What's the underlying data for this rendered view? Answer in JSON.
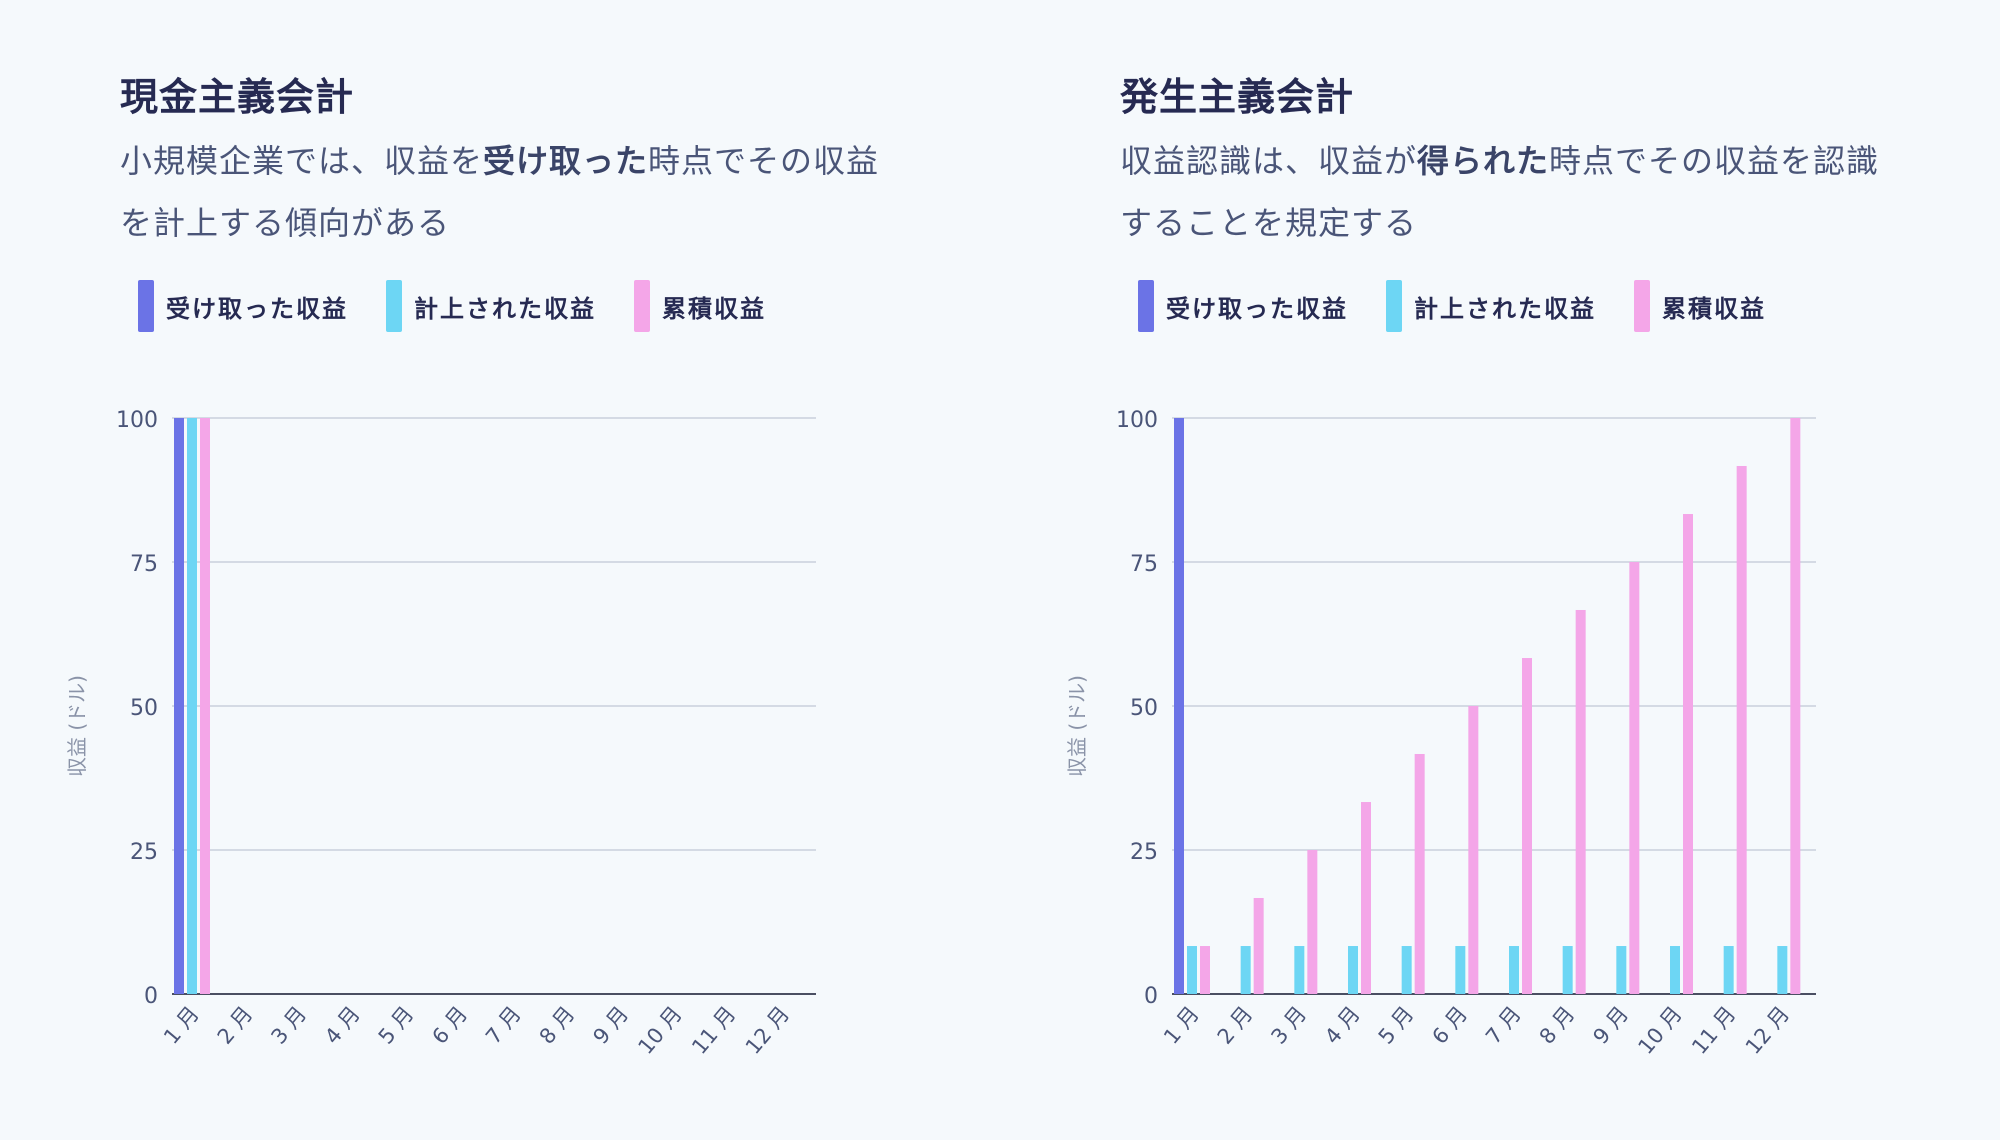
{
  "colors": {
    "received": "#6b73e6",
    "recorded": "#6dd6f4",
    "cumulative": "#f4a6e8",
    "grid": "#c9d0dc",
    "axis": "#4a4f62",
    "tick": "#4a5578"
  },
  "panels": [
    {
      "title": "現金主義会計",
      "desc_pre": "小規模企業では、収益を",
      "desc_bold": "受け取った",
      "desc_post": "時点でその収益を計上する傾向がある"
    },
    {
      "title": "発生主義会計",
      "desc_pre": "収益認識は、収益が",
      "desc_bold": "得られた",
      "desc_post": "時点でその収益を認識することを規定する"
    }
  ],
  "legend": [
    "受け取った収益",
    "計上された収益",
    "累積収益"
  ],
  "chart_data": [
    {
      "type": "bar",
      "ylabel": "収益 (ドル)",
      "ylim": [
        0,
        100
      ],
      "yticks": [
        0,
        25,
        50,
        75,
        100
      ],
      "categories": [
        "1 月",
        "2 月",
        "3 月",
        "4 月",
        "5 月",
        "6 月",
        "7 月",
        "8 月",
        "9 月",
        "10 月",
        "11 月",
        "12 月"
      ],
      "series": [
        {
          "name": "受け取った収益",
          "values": [
            100,
            0,
            0,
            0,
            0,
            0,
            0,
            0,
            0,
            0,
            0,
            0
          ]
        },
        {
          "name": "計上された収益",
          "values": [
            100,
            0,
            0,
            0,
            0,
            0,
            0,
            0,
            0,
            0,
            0,
            0
          ]
        },
        {
          "name": "累積収益",
          "values": [
            100,
            0,
            0,
            0,
            0,
            0,
            0,
            0,
            0,
            0,
            0,
            0
          ]
        }
      ],
      "legend": "top-left",
      "grid": true
    },
    {
      "type": "bar",
      "ylabel": "収益 (ドル)",
      "ylim": [
        0,
        100
      ],
      "yticks": [
        0,
        25,
        50,
        75,
        100
      ],
      "categories": [
        "1 月",
        "2 月",
        "3 月",
        "4 月",
        "5 月",
        "6 月",
        "7 月",
        "8 月",
        "9 月",
        "10 月",
        "11 月",
        "12 月"
      ],
      "series": [
        {
          "name": "受け取った収益",
          "values": [
            100,
            0,
            0,
            0,
            0,
            0,
            0,
            0,
            0,
            0,
            0,
            0
          ]
        },
        {
          "name": "計上された収益",
          "values": [
            8.33,
            8.33,
            8.33,
            8.33,
            8.33,
            8.33,
            8.33,
            8.33,
            8.33,
            8.33,
            8.33,
            8.33
          ]
        },
        {
          "name": "累積収益",
          "values": [
            8.33,
            16.67,
            25,
            33.33,
            41.67,
            50,
            58.33,
            66.67,
            75,
            83.33,
            91.67,
            100
          ]
        }
      ],
      "legend": "top-left",
      "grid": true
    }
  ]
}
